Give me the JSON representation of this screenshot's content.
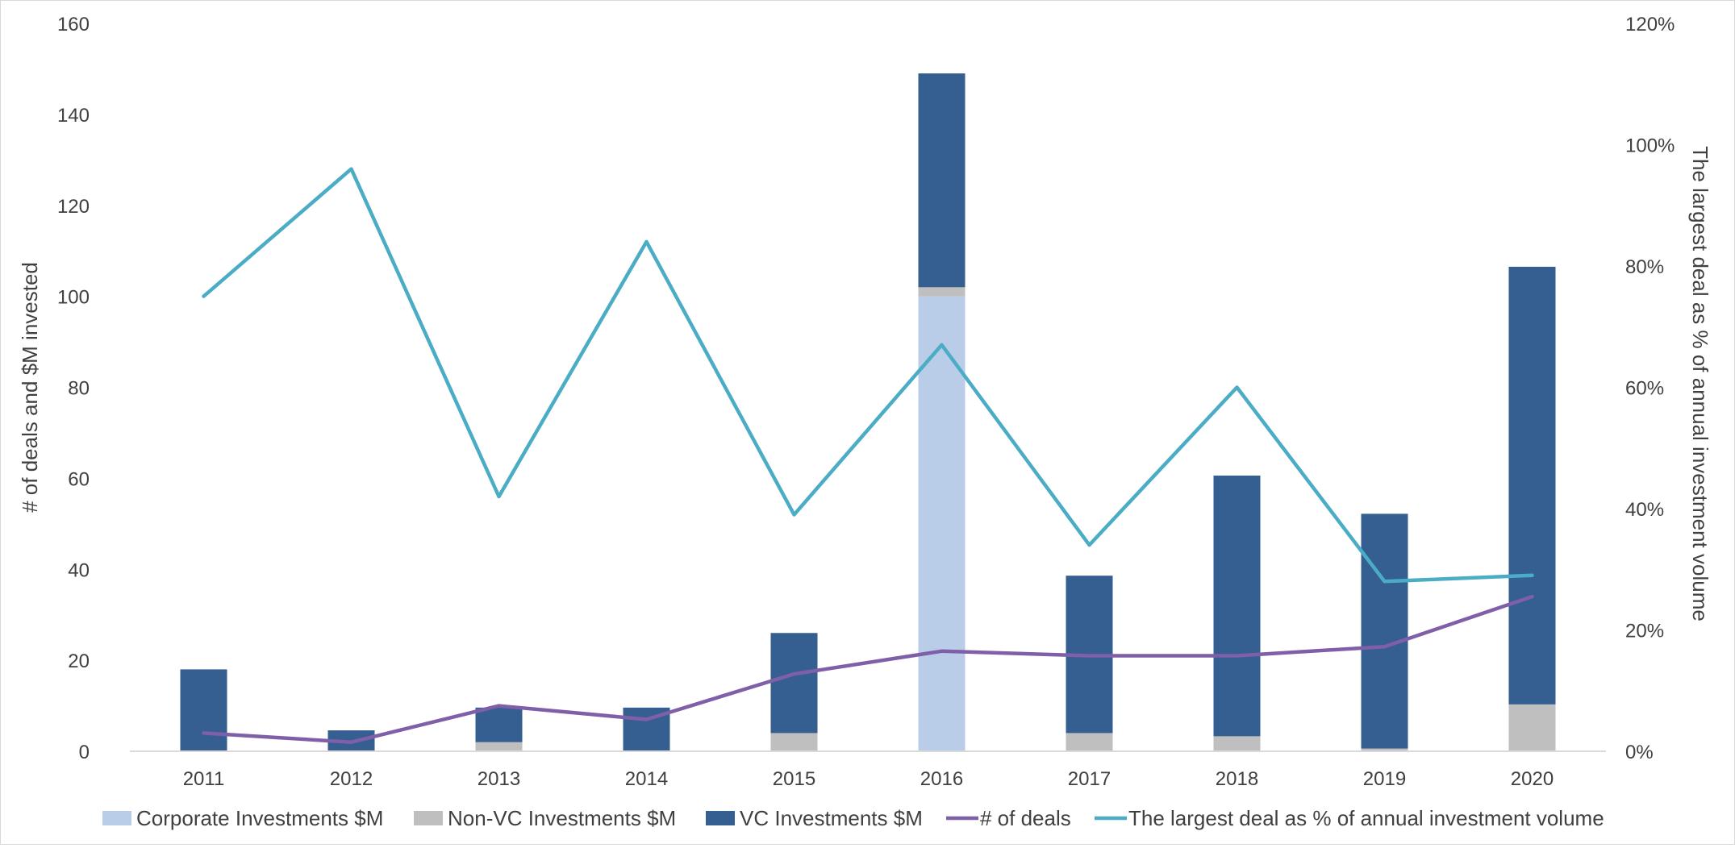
{
  "chart_data": {
    "type": "bar",
    "categories": [
      "2011",
      "2012",
      "2013",
      "2014",
      "2015",
      "2016",
      "2017",
      "2018",
      "2019",
      "2020"
    ],
    "stacked": true,
    "series": [
      {
        "name": "Corporate Investments $M",
        "kind": "bar",
        "axis": "left",
        "color": "#b9cde8",
        "values": [
          0,
          0,
          0,
          0,
          0,
          100,
          0,
          0,
          0,
          0
        ]
      },
      {
        "name": "Non-VC Investments $M",
        "kind": "bar",
        "axis": "left",
        "color": "#bfbfbf",
        "values": [
          0,
          0,
          2,
          0,
          4,
          2,
          4,
          3.3,
          0.6,
          10.3
        ]
      },
      {
        "name": "VC Investments $M",
        "kind": "bar",
        "axis": "left",
        "color": "#355f91",
        "values": [
          18,
          4.6,
          7.6,
          9.6,
          22,
          47,
          34.6,
          57.3,
          51.6,
          96.2
        ]
      },
      {
        "name": "# of deals",
        "kind": "line",
        "axis": "left",
        "color": "#7f5fa8",
        "values": [
          4,
          2,
          10,
          7,
          17,
          22,
          21,
          21,
          23,
          34
        ]
      },
      {
        "name": "The largest deal as % of annual investment volume",
        "kind": "line",
        "axis": "right",
        "color": "#4bacc6",
        "values": [
          75,
          96,
          42,
          84,
          39,
          67,
          34,
          60,
          28,
          29
        ]
      }
    ],
    "ylabel": "# of deals and $M invested",
    "y2label": "The largest deal as % of annual investment volume",
    "ylim": [
      0,
      160
    ],
    "y2lim": [
      0,
      120
    ],
    "yticks": [
      "0",
      "20",
      "40",
      "60",
      "80",
      "100",
      "120",
      "140",
      "160"
    ],
    "y2ticks": [
      "0%",
      "20%",
      "40%",
      "60%",
      "80%",
      "100%",
      "120%"
    ],
    "grid": false,
    "legend": "bottom"
  }
}
